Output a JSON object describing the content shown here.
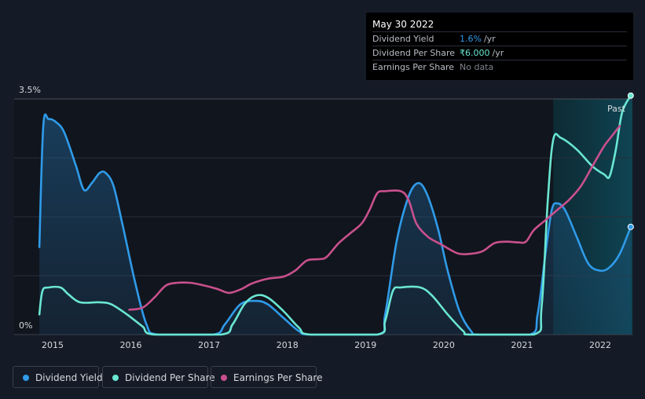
{
  "tooltip": {
    "date": "May 30 2022",
    "rows": [
      {
        "label": "Dividend Yield",
        "value": "1.6%",
        "unit": "/yr",
        "color": "#2f9be9"
      },
      {
        "label": "Dividend Per Share",
        "value": "₹6.000",
        "unit": "/yr",
        "color": "#6ae6d2"
      },
      {
        "label": "Earnings Per Share",
        "value": "No data",
        "unit": "",
        "color": "#7d828b"
      }
    ]
  },
  "past_label": "Past",
  "legend": [
    {
      "label": "Dividend Yield",
      "color": "#2f9be9"
    },
    {
      "label": "Dividend Per Share",
      "color": "#6ae6d2"
    },
    {
      "label": "Earnings Per Share",
      "color": "#c9508d"
    }
  ],
  "chart_data": {
    "type": "line",
    "x_ticks": [
      "2015",
      "2016",
      "2017",
      "2018",
      "2019",
      "2020",
      "2021",
      "2022"
    ],
    "y_ticks": [
      "0%",
      "3.5%"
    ],
    "ylim": [
      0,
      3.5
    ],
    "xlim": [
      2014.82,
      2022.4
    ],
    "grid": true,
    "legend_position": "bottom-left",
    "series": [
      {
        "name": "Dividend Yield",
        "color": "#2f9be9",
        "filled": true,
        "points": [
          [
            2014.83,
            1.3
          ],
          [
            2014.88,
            3.1
          ],
          [
            2014.95,
            3.2
          ],
          [
            2015.05,
            3.15
          ],
          [
            2015.15,
            3.0
          ],
          [
            2015.3,
            2.5
          ],
          [
            2015.4,
            2.15
          ],
          [
            2015.5,
            2.25
          ],
          [
            2015.6,
            2.4
          ],
          [
            2015.68,
            2.4
          ],
          [
            2015.78,
            2.2
          ],
          [
            2015.9,
            1.6
          ],
          [
            2016.05,
            0.8
          ],
          [
            2016.2,
            0.15
          ],
          [
            2016.35,
            0
          ],
          [
            2017.05,
            0
          ],
          [
            2017.2,
            0.15
          ],
          [
            2017.4,
            0.45
          ],
          [
            2017.6,
            0.5
          ],
          [
            2017.75,
            0.45
          ],
          [
            2017.95,
            0.25
          ],
          [
            2018.15,
            0.05
          ],
          [
            2018.3,
            0
          ],
          [
            2019.15,
            0
          ],
          [
            2019.25,
            0.3
          ],
          [
            2019.4,
            1.4
          ],
          [
            2019.55,
            2.05
          ],
          [
            2019.67,
            2.25
          ],
          [
            2019.78,
            2.1
          ],
          [
            2019.92,
            1.6
          ],
          [
            2020.05,
            0.95
          ],
          [
            2020.2,
            0.35
          ],
          [
            2020.35,
            0.05
          ],
          [
            2020.45,
            0
          ],
          [
            2021.1,
            0
          ],
          [
            2021.2,
            0.3
          ],
          [
            2021.3,
            1.2
          ],
          [
            2021.38,
            1.85
          ],
          [
            2021.45,
            1.95
          ],
          [
            2021.55,
            1.85
          ],
          [
            2021.7,
            1.45
          ],
          [
            2021.85,
            1.05
          ],
          [
            2022.0,
            0.95
          ],
          [
            2022.12,
            1.0
          ],
          [
            2022.25,
            1.2
          ],
          [
            2022.39,
            1.6
          ]
        ]
      },
      {
        "name": "Dividend Per Share",
        "color": "#6ae6d2",
        "filled": false,
        "points": [
          [
            2014.83,
            0.3
          ],
          [
            2014.87,
            0.65
          ],
          [
            2014.95,
            0.7
          ],
          [
            2015.1,
            0.7
          ],
          [
            2015.2,
            0.6
          ],
          [
            2015.35,
            0.48
          ],
          [
            2015.6,
            0.48
          ],
          [
            2015.75,
            0.45
          ],
          [
            2015.95,
            0.3
          ],
          [
            2016.15,
            0.12
          ],
          [
            2016.3,
            0
          ],
          [
            2017.15,
            0
          ],
          [
            2017.3,
            0.15
          ],
          [
            2017.45,
            0.45
          ],
          [
            2017.6,
            0.58
          ],
          [
            2017.75,
            0.55
          ],
          [
            2017.95,
            0.35
          ],
          [
            2018.15,
            0.1
          ],
          [
            2018.3,
            0
          ],
          [
            2019.15,
            0
          ],
          [
            2019.25,
            0.2
          ],
          [
            2019.35,
            0.65
          ],
          [
            2019.45,
            0.7
          ],
          [
            2019.7,
            0.7
          ],
          [
            2019.85,
            0.58
          ],
          [
            2020.05,
            0.3
          ],
          [
            2020.25,
            0.05
          ],
          [
            2020.35,
            0
          ],
          [
            2021.15,
            0
          ],
          [
            2021.25,
            0.4
          ],
          [
            2021.33,
            2.0
          ],
          [
            2021.4,
            2.9
          ],
          [
            2021.5,
            2.92
          ],
          [
            2021.7,
            2.75
          ],
          [
            2021.9,
            2.5
          ],
          [
            2022.05,
            2.38
          ],
          [
            2022.12,
            2.35
          ],
          [
            2022.2,
            2.75
          ],
          [
            2022.28,
            3.3
          ],
          [
            2022.39,
            3.55
          ]
        ]
      },
      {
        "name": "Earnings Per Share",
        "color": "#c9508d",
        "filled": false,
        "points": [
          [
            2015.98,
            0.37
          ],
          [
            2016.15,
            0.4
          ],
          [
            2016.3,
            0.55
          ],
          [
            2016.45,
            0.73
          ],
          [
            2016.6,
            0.77
          ],
          [
            2016.75,
            0.77
          ],
          [
            2016.9,
            0.74
          ],
          [
            2017.1,
            0.68
          ],
          [
            2017.25,
            0.62
          ],
          [
            2017.4,
            0.67
          ],
          [
            2017.55,
            0.76
          ],
          [
            2017.75,
            0.83
          ],
          [
            2017.95,
            0.86
          ],
          [
            2018.1,
            0.95
          ],
          [
            2018.25,
            1.1
          ],
          [
            2018.4,
            1.12
          ],
          [
            2018.5,
            1.15
          ],
          [
            2018.65,
            1.35
          ],
          [
            2018.8,
            1.5
          ],
          [
            2018.95,
            1.65
          ],
          [
            2019.05,
            1.85
          ],
          [
            2019.15,
            2.1
          ],
          [
            2019.25,
            2.13
          ],
          [
            2019.45,
            2.13
          ],
          [
            2019.55,
            2.0
          ],
          [
            2019.65,
            1.65
          ],
          [
            2019.8,
            1.45
          ],
          [
            2019.95,
            1.35
          ],
          [
            2020.1,
            1.25
          ],
          [
            2020.2,
            1.2
          ],
          [
            2020.35,
            1.2
          ],
          [
            2020.5,
            1.24
          ],
          [
            2020.65,
            1.36
          ],
          [
            2020.8,
            1.38
          ],
          [
            2020.95,
            1.37
          ],
          [
            2021.05,
            1.38
          ],
          [
            2021.15,
            1.55
          ],
          [
            2021.3,
            1.7
          ],
          [
            2021.45,
            1.85
          ],
          [
            2021.6,
            2.0
          ],
          [
            2021.75,
            2.2
          ],
          [
            2021.9,
            2.5
          ],
          [
            2022.05,
            2.8
          ],
          [
            2022.15,
            2.95
          ],
          [
            2022.25,
            3.1
          ]
        ]
      }
    ],
    "past_region_start": 2021.4
  }
}
